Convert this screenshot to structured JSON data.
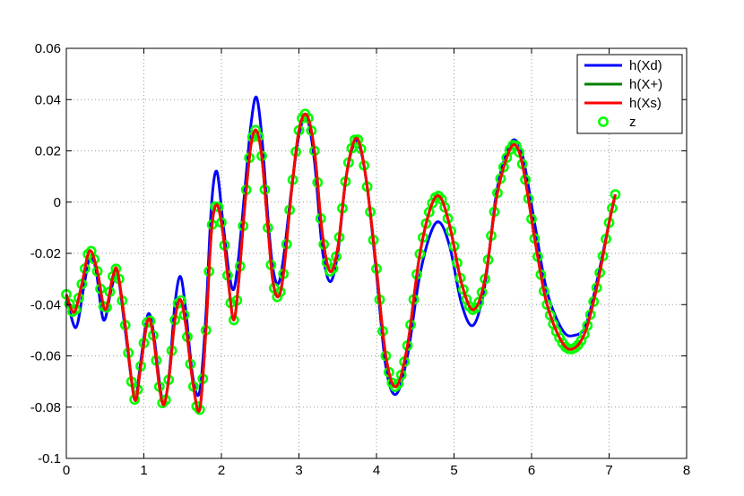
{
  "chart_data": {
    "type": "line",
    "title": "",
    "xlabel": "",
    "ylabel": "",
    "xlim": [
      0,
      8
    ],
    "ylim": [
      -0.1,
      0.06
    ],
    "xticks": [
      "0",
      "1",
      "2",
      "3",
      "4",
      "5",
      "6",
      "7",
      "8"
    ],
    "yticks": [
      "-0.1",
      "-0.08",
      "-0.06",
      "-0.04",
      "-0.02",
      "0",
      "0.02",
      "0.04",
      "0.06"
    ],
    "grid": true,
    "legend_position": "top-right",
    "series": [
      {
        "name": "h(Xd)",
        "color": "#0000ff",
        "style": "line",
        "points": [
          [
            0,
            -0.036
          ],
          [
            0.12,
            -0.049
          ],
          [
            0.22,
            -0.034
          ],
          [
            0.3,
            -0.022
          ],
          [
            0.38,
            -0.026
          ],
          [
            0.48,
            -0.046
          ],
          [
            0.58,
            -0.034
          ],
          [
            0.66,
            -0.028
          ],
          [
            0.76,
            -0.05
          ],
          [
            0.88,
            -0.076
          ],
          [
            0.96,
            -0.062
          ],
          [
            1.05,
            -0.044
          ],
          [
            1.12,
            -0.05
          ],
          [
            1.2,
            -0.07
          ],
          [
            1.26,
            -0.079
          ],
          [
            1.33,
            -0.066
          ],
          [
            1.4,
            -0.04
          ],
          [
            1.47,
            -0.029
          ],
          [
            1.54,
            -0.042
          ],
          [
            1.63,
            -0.068
          ],
          [
            1.72,
            -0.074
          ],
          [
            1.8,
            -0.044
          ],
          [
            1.87,
            -0.002
          ],
          [
            1.94,
            0.012
          ],
          [
            2.02,
            -0.008
          ],
          [
            2.1,
            -0.028
          ],
          [
            2.16,
            -0.034
          ],
          [
            2.22,
            -0.022
          ],
          [
            2.3,
            0.004
          ],
          [
            2.38,
            0.03
          ],
          [
            2.45,
            0.041
          ],
          [
            2.52,
            0.026
          ],
          [
            2.6,
            -0.006
          ],
          [
            2.66,
            -0.025
          ],
          [
            2.73,
            -0.032
          ],
          [
            2.8,
            -0.022
          ],
          [
            2.9,
            0.004
          ],
          [
            3.0,
            0.026
          ],
          [
            3.1,
            0.033
          ],
          [
            3.2,
            0.016
          ],
          [
            3.3,
            -0.018
          ],
          [
            3.4,
            -0.031
          ],
          [
            3.5,
            -0.02
          ],
          [
            3.6,
            0.008
          ],
          [
            3.7,
            0.022
          ],
          [
            3.78,
            0.022
          ],
          [
            3.88,
            0.006
          ],
          [
            4.0,
            -0.028
          ],
          [
            4.12,
            -0.064
          ],
          [
            4.25,
            -0.075
          ],
          [
            4.4,
            -0.06
          ],
          [
            4.55,
            -0.03
          ],
          [
            4.7,
            -0.012
          ],
          [
            4.82,
            -0.008
          ],
          [
            4.95,
            -0.018
          ],
          [
            5.1,
            -0.04
          ],
          [
            5.25,
            -0.048
          ],
          [
            5.4,
            -0.032
          ],
          [
            5.55,
            0.004
          ],
          [
            5.7,
            0.021
          ],
          [
            5.8,
            0.024
          ],
          [
            5.9,
            0.016
          ],
          [
            6.05,
            -0.01
          ],
          [
            6.2,
            -0.035
          ],
          [
            6.4,
            -0.05
          ],
          [
            6.55,
            -0.052
          ],
          [
            6.7,
            -0.048
          ],
          [
            6.85,
            -0.03
          ],
          [
            7.0,
            -0.008
          ],
          [
            7.08,
            0.003
          ]
        ]
      },
      {
        "name": "h(X+)",
        "color": "#008000",
        "style": "line",
        "points": [
          [
            0,
            -0.036
          ],
          [
            0.1,
            -0.043
          ],
          [
            0.2,
            -0.032
          ],
          [
            0.3,
            -0.019
          ],
          [
            0.4,
            -0.027
          ],
          [
            0.5,
            -0.042
          ],
          [
            0.6,
            -0.029
          ],
          [
            0.66,
            -0.027
          ],
          [
            0.76,
            -0.048
          ],
          [
            0.88,
            -0.077
          ],
          [
            0.96,
            -0.064
          ],
          [
            1.05,
            -0.046
          ],
          [
            1.12,
            -0.052
          ],
          [
            1.2,
            -0.072
          ],
          [
            1.26,
            -0.079
          ],
          [
            1.33,
            -0.067
          ],
          [
            1.4,
            -0.046
          ],
          [
            1.47,
            -0.038
          ],
          [
            1.54,
            -0.048
          ],
          [
            1.63,
            -0.07
          ],
          [
            1.72,
            -0.081
          ],
          [
            1.8,
            -0.05
          ],
          [
            1.87,
            -0.012
          ],
          [
            1.94,
            -0.001
          ],
          [
            2.02,
            -0.012
          ],
          [
            2.1,
            -0.034
          ],
          [
            2.16,
            -0.046
          ],
          [
            2.22,
            -0.032
          ],
          [
            2.3,
            -0.002
          ],
          [
            2.38,
            0.022
          ],
          [
            2.45,
            0.028
          ],
          [
            2.52,
            0.018
          ],
          [
            2.6,
            -0.01
          ],
          [
            2.66,
            -0.03
          ],
          [
            2.73,
            -0.037
          ],
          [
            2.8,
            -0.028
          ],
          [
            2.9,
            0.003
          ],
          [
            3.0,
            0.028
          ],
          [
            3.1,
            0.034
          ],
          [
            3.2,
            0.02
          ],
          [
            3.3,
            -0.012
          ],
          [
            3.4,
            -0.027
          ],
          [
            3.5,
            -0.018
          ],
          [
            3.6,
            0.008
          ],
          [
            3.7,
            0.023
          ],
          [
            3.78,
            0.023
          ],
          [
            3.88,
            0.006
          ],
          [
            4.0,
            -0.026
          ],
          [
            4.12,
            -0.06
          ],
          [
            4.25,
            -0.072
          ],
          [
            4.4,
            -0.056
          ],
          [
            4.55,
            -0.022
          ],
          [
            4.7,
            -0.002
          ],
          [
            4.82,
            0.002
          ],
          [
            4.95,
            -0.01
          ],
          [
            5.1,
            -0.032
          ],
          [
            5.25,
            -0.042
          ],
          [
            5.4,
            -0.03
          ],
          [
            5.55,
            0.002
          ],
          [
            5.7,
            0.019
          ],
          [
            5.8,
            0.022
          ],
          [
            5.9,
            0.012
          ],
          [
            6.05,
            -0.016
          ],
          [
            6.2,
            -0.04
          ],
          [
            6.4,
            -0.055
          ],
          [
            6.55,
            -0.057
          ],
          [
            6.7,
            -0.05
          ],
          [
            6.85,
            -0.032
          ],
          [
            7.0,
            -0.008
          ],
          [
            7.08,
            0.003
          ]
        ]
      },
      {
        "name": "h(Xs)",
        "color": "#ff0000",
        "style": "line",
        "points": [
          [
            0,
            -0.036
          ],
          [
            0.1,
            -0.043
          ],
          [
            0.2,
            -0.032
          ],
          [
            0.3,
            -0.019
          ],
          [
            0.4,
            -0.027
          ],
          [
            0.5,
            -0.042
          ],
          [
            0.6,
            -0.029
          ],
          [
            0.66,
            -0.027
          ],
          [
            0.76,
            -0.048
          ],
          [
            0.88,
            -0.077
          ],
          [
            0.96,
            -0.064
          ],
          [
            1.05,
            -0.046
          ],
          [
            1.12,
            -0.052
          ],
          [
            1.2,
            -0.072
          ],
          [
            1.26,
            -0.079
          ],
          [
            1.33,
            -0.067
          ],
          [
            1.4,
            -0.046
          ],
          [
            1.47,
            -0.038
          ],
          [
            1.54,
            -0.048
          ],
          [
            1.63,
            -0.07
          ],
          [
            1.72,
            -0.081
          ],
          [
            1.8,
            -0.05
          ],
          [
            1.87,
            -0.012
          ],
          [
            1.94,
            -0.001
          ],
          [
            2.02,
            -0.012
          ],
          [
            2.1,
            -0.034
          ],
          [
            2.16,
            -0.046
          ],
          [
            2.22,
            -0.032
          ],
          [
            2.3,
            -0.002
          ],
          [
            2.38,
            0.022
          ],
          [
            2.45,
            0.028
          ],
          [
            2.52,
            0.018
          ],
          [
            2.6,
            -0.01
          ],
          [
            2.66,
            -0.03
          ],
          [
            2.73,
            -0.037
          ],
          [
            2.8,
            -0.028
          ],
          [
            2.9,
            0.003
          ],
          [
            3.0,
            0.028
          ],
          [
            3.1,
            0.034
          ],
          [
            3.2,
            0.02
          ],
          [
            3.3,
            -0.012
          ],
          [
            3.4,
            -0.027
          ],
          [
            3.5,
            -0.018
          ],
          [
            3.6,
            0.008
          ],
          [
            3.7,
            0.023
          ],
          [
            3.78,
            0.023
          ],
          [
            3.88,
            0.006
          ],
          [
            4.0,
            -0.026
          ],
          [
            4.12,
            -0.06
          ],
          [
            4.25,
            -0.072
          ],
          [
            4.4,
            -0.056
          ],
          [
            4.55,
            -0.022
          ],
          [
            4.7,
            -0.002
          ],
          [
            4.82,
            0.002
          ],
          [
            4.95,
            -0.01
          ],
          [
            5.1,
            -0.032
          ],
          [
            5.25,
            -0.042
          ],
          [
            5.4,
            -0.03
          ],
          [
            5.55,
            0.002
          ],
          [
            5.7,
            0.019
          ],
          [
            5.8,
            0.022
          ],
          [
            5.9,
            0.012
          ],
          [
            6.05,
            -0.016
          ],
          [
            6.2,
            -0.04
          ],
          [
            6.4,
            -0.055
          ],
          [
            6.55,
            -0.057
          ],
          [
            6.7,
            -0.05
          ],
          [
            6.85,
            -0.032
          ],
          [
            7.0,
            -0.008
          ],
          [
            7.08,
            0.003
          ]
        ]
      },
      {
        "name": "z",
        "color": "#00ff00",
        "style": "markers",
        "marker": "circle",
        "x_start": 0,
        "x_end": 7.08,
        "x_step": 0.04,
        "follows_series": "h(X+)"
      }
    ]
  }
}
